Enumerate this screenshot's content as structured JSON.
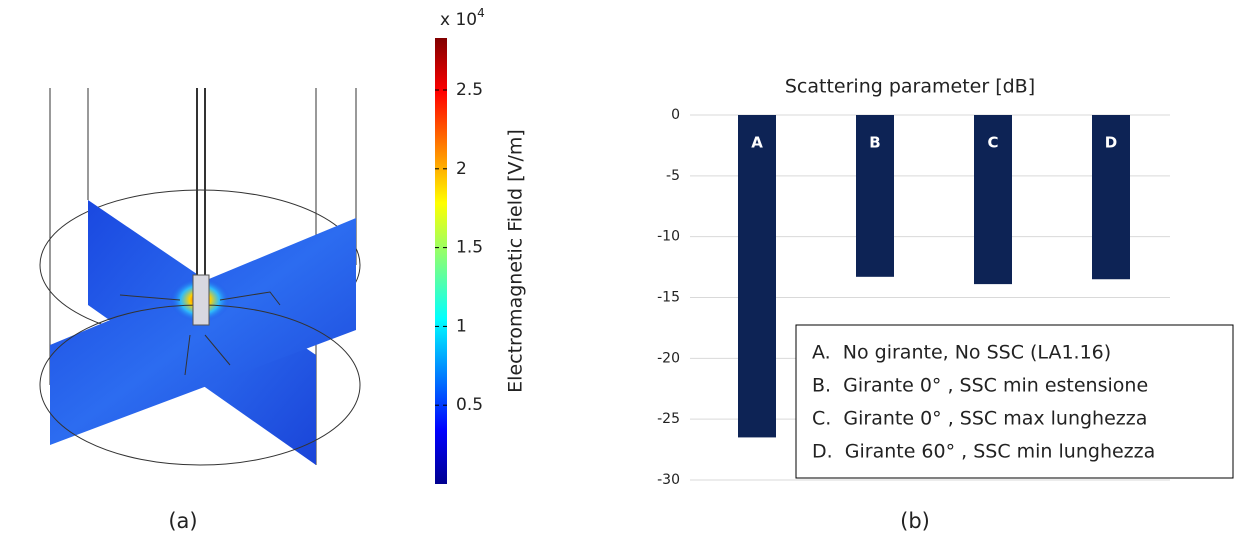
{
  "chart_data": [
    {
      "type": "colorbar",
      "title": "Electromagnetic Field [V/m]",
      "multiplier_base": "x 10",
      "multiplier_exponent": "4",
      "zlim": [
        0,
        2.83
      ],
      "zticks": [
        0.5,
        1,
        1.5,
        2,
        2.5
      ],
      "caption": "(a)"
    },
    {
      "type": "bar",
      "title": "Scattering parameter [dB]",
      "categories": [
        "A",
        "B",
        "C",
        "D"
      ],
      "values": [
        -26.5,
        -13.3,
        -13.9,
        -13.5
      ],
      "color": "#0d2355",
      "ylim": [
        -30,
        0
      ],
      "yticks": [
        0,
        -5,
        -10,
        -15,
        -20,
        -25,
        -30
      ],
      "grid": true,
      "legend_entries": [
        "A.  No girante, No SSC (LA1.16)",
        "B.  Girante 0° , SSC min estensione",
        "C.  Girante 0° , SSC max lunghezza",
        "D.  Girante 60° , SSC min lunghezza"
      ],
      "caption": "(b)"
    }
  ]
}
